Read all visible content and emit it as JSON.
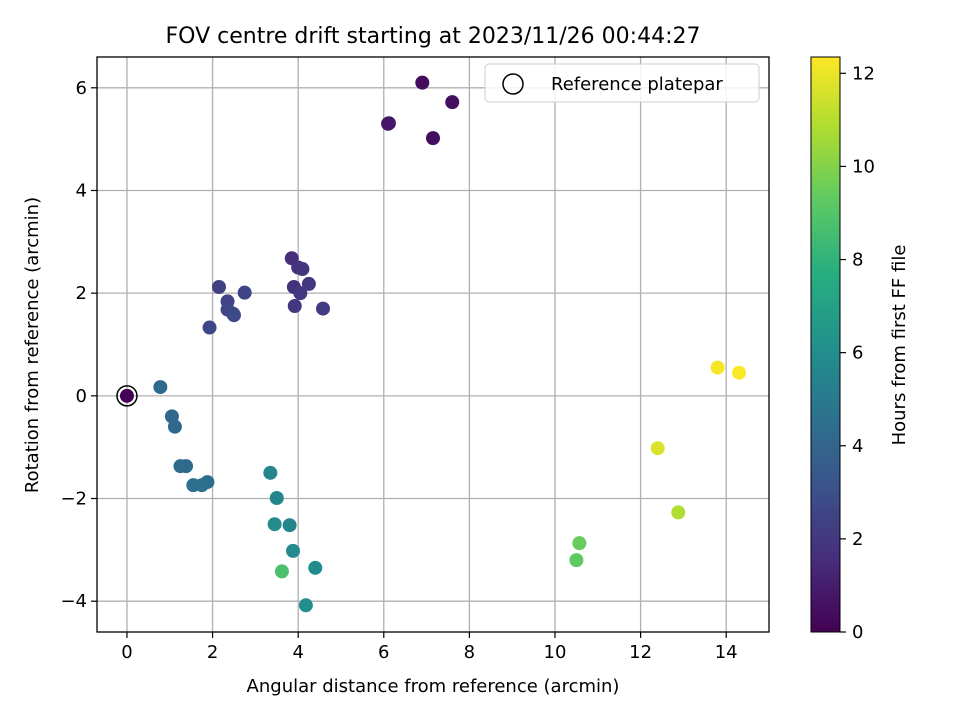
{
  "chart_data": {
    "type": "scatter",
    "title": "FOV centre drift starting at 2023/11/26 00:44:27",
    "xlabel": "Angular distance from reference (arcmin)",
    "ylabel": "Rotation from reference (arcmin)",
    "xlim": [
      -0.7,
      15.0
    ],
    "ylim": [
      -4.6,
      6.6
    ],
    "xticks": [
      0,
      2,
      4,
      6,
      8,
      10,
      12,
      14
    ],
    "yticks": [
      -4,
      -2,
      0,
      2,
      4,
      6
    ],
    "grid": true,
    "colormap": "viridis",
    "colorbar": {
      "label": "Hours from first FF file",
      "range": [
        0,
        12.35
      ],
      "ticks": [
        0,
        2,
        4,
        6,
        8,
        10,
        12
      ]
    },
    "legend": {
      "position": "top-right",
      "entries": [
        {
          "label": "Reference platepar",
          "marker": "open-circle"
        }
      ]
    },
    "reference_point": {
      "x": 0,
      "y": 0
    },
    "points": [
      {
        "x": 0.0,
        "y": 0.0,
        "c": 0.1
      },
      {
        "x": 6.9,
        "y": 6.1,
        "c": 0.4
      },
      {
        "x": 7.6,
        "y": 5.72,
        "c": 0.5
      },
      {
        "x": 6.1,
        "y": 5.3,
        "c": 0.7
      },
      {
        "x": 6.12,
        "y": 5.31,
        "c": 0.8
      },
      {
        "x": 7.15,
        "y": 5.02,
        "c": 0.5
      },
      {
        "x": 3.85,
        "y": 2.68,
        "c": 1.7
      },
      {
        "x": 4.0,
        "y": 2.5,
        "c": 1.8
      },
      {
        "x": 4.1,
        "y": 2.47,
        "c": 1.9
      },
      {
        "x": 4.25,
        "y": 2.18,
        "c": 2.0
      },
      {
        "x": 3.9,
        "y": 2.12,
        "c": 1.8
      },
      {
        "x": 4.05,
        "y": 2.0,
        "c": 2.0
      },
      {
        "x": 3.92,
        "y": 1.75,
        "c": 2.0
      },
      {
        "x": 4.58,
        "y": 1.7,
        "c": 2.2
      },
      {
        "x": 2.15,
        "y": 2.12,
        "c": 2.4
      },
      {
        "x": 2.75,
        "y": 2.01,
        "c": 2.5
      },
      {
        "x": 2.35,
        "y": 1.84,
        "c": 2.5
      },
      {
        "x": 2.35,
        "y": 1.68,
        "c": 2.6
      },
      {
        "x": 2.48,
        "y": 1.6,
        "c": 2.7
      },
      {
        "x": 2.5,
        "y": 1.57,
        "c": 2.8
      },
      {
        "x": 1.93,
        "y": 1.33,
        "c": 2.7
      },
      {
        "x": 0.78,
        "y": 0.17,
        "c": 4.3
      },
      {
        "x": 1.05,
        "y": -0.4,
        "c": 4.2
      },
      {
        "x": 1.12,
        "y": -0.6,
        "c": 4.2
      },
      {
        "x": 1.25,
        "y": -1.37,
        "c": 4.3
      },
      {
        "x": 1.38,
        "y": -1.37,
        "c": 4.3
      },
      {
        "x": 1.55,
        "y": -1.74,
        "c": 4.6
      },
      {
        "x": 1.75,
        "y": -1.74,
        "c": 4.6
      },
      {
        "x": 1.88,
        "y": -1.68,
        "c": 4.5
      },
      {
        "x": 3.35,
        "y": -1.5,
        "c": 5.6
      },
      {
        "x": 3.5,
        "y": -1.99,
        "c": 5.7
      },
      {
        "x": 3.45,
        "y": -2.5,
        "c": 6.0
      },
      {
        "x": 3.8,
        "y": -2.52,
        "c": 5.7
      },
      {
        "x": 3.88,
        "y": -3.02,
        "c": 5.9
      },
      {
        "x": 4.4,
        "y": -3.35,
        "c": 6.0
      },
      {
        "x": 4.18,
        "y": -4.08,
        "c": 6.2
      },
      {
        "x": 3.62,
        "y": -3.42,
        "c": 8.8
      },
      {
        "x": 10.5,
        "y": -3.2,
        "c": 9.3
      },
      {
        "x": 10.57,
        "y": -2.87,
        "c": 9.5
      },
      {
        "x": 12.88,
        "y": -2.27,
        "c": 10.9
      },
      {
        "x": 12.4,
        "y": -1.02,
        "c": 11.7
      },
      {
        "x": 13.8,
        "y": 0.55,
        "c": 12.2
      },
      {
        "x": 14.3,
        "y": 0.45,
        "c": 12.3
      }
    ]
  }
}
